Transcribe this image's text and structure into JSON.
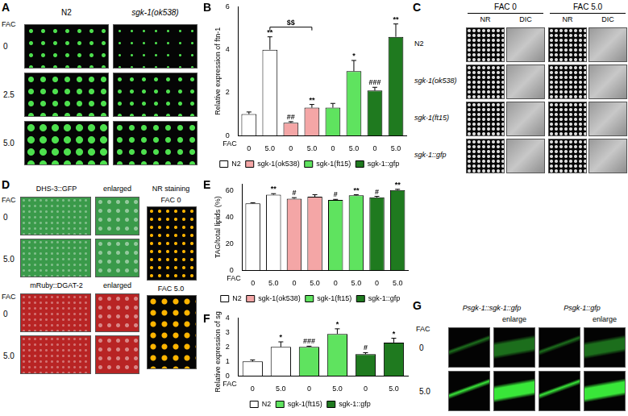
{
  "panels": {
    "A": {
      "label": "A",
      "columns": [
        "N2",
        "sgk-1(ok538)"
      ],
      "row_title": "FAC",
      "rows": [
        "0",
        "2.5",
        "5.0"
      ]
    },
    "C": {
      "label": "C",
      "groups": [
        "FAC 0",
        "FAC 5.0"
      ],
      "columns": [
        "NR",
        "DIC"
      ],
      "rows": [
        "N2",
        "sgk-1(ok538)",
        "sgk-1(ft15)",
        "sgk-1::gfp"
      ]
    },
    "D": {
      "label": "D",
      "row_title": "FAC",
      "blocks": [
        {
          "title": "DHS-3::GFP",
          "enlarged": "enlarged",
          "rows": [
            "0",
            "5.0"
          ],
          "color": "#3a9a4a"
        },
        {
          "title": "mRuby::DGAT-2",
          "enlarged": "enlarged",
          "rows": [
            "0",
            "5.0"
          ],
          "color": "#b82424"
        }
      ],
      "stain": {
        "title": "NR staining",
        "rows": [
          "FAC 0",
          "FAC 5.0"
        ]
      }
    },
    "G": {
      "label": "G",
      "row_title": "FAC",
      "rows": [
        "0",
        "5.0"
      ],
      "columns": [
        {
          "title": "Psgk-1::sgk-1::gfp",
          "enlarged": "enlarge"
        },
        {
          "title": "Psgk-1::gfp",
          "enlarged": "enlarge"
        }
      ]
    }
  },
  "chart_data": [
    {
      "panel_label": "B",
      "type": "bar",
      "y_label": "Relative expression of ftn-1",
      "x_label": "FAC",
      "categories": [
        "0",
        "5.0",
        "0",
        "5.0",
        "0",
        "5.0",
        "0",
        "5.0"
      ],
      "ylim": [
        0,
        6
      ],
      "yticks": [
        0,
        2,
        4,
        6
      ],
      "grid": false,
      "legend": "bottom",
      "series": [
        {
          "name": "N2",
          "color": "#ffffff",
          "values": [
            1.0,
            4.0,
            null,
            null,
            null,
            null,
            null,
            null
          ],
          "errors": [
            0.1,
            0.6,
            null,
            null,
            null,
            null,
            null,
            null
          ],
          "significance": [
            null,
            "**",
            null,
            null,
            null,
            null,
            null,
            null
          ]
        },
        {
          "name": "sgk-1(ok538)",
          "color": "#f4a6a6",
          "values": [
            null,
            null,
            0.6,
            1.3,
            null,
            null,
            null,
            null
          ],
          "errors": [
            null,
            null,
            0.05,
            0.15,
            null,
            null,
            null,
            null
          ],
          "significance": [
            null,
            null,
            "##",
            "**",
            null,
            null,
            null,
            null
          ]
        },
        {
          "name": "sgk-1(ft15)",
          "color": "#5fe35f",
          "values": [
            null,
            null,
            null,
            null,
            1.3,
            3.0,
            null,
            null
          ],
          "errors": [
            null,
            null,
            null,
            null,
            0.2,
            0.5,
            null,
            null
          ],
          "significance": [
            null,
            null,
            null,
            null,
            null,
            "*",
            null,
            null
          ]
        },
        {
          "name": "sgk-1::gfp",
          "color": "#1f7a1f",
          "values": [
            null,
            null,
            null,
            null,
            null,
            null,
            2.1,
            4.6
          ],
          "errors": [
            null,
            null,
            null,
            null,
            null,
            null,
            0.15,
            0.6
          ],
          "significance": [
            null,
            null,
            null,
            null,
            null,
            null,
            "###",
            "**"
          ]
        }
      ],
      "brackets": [
        {
          "from": 1,
          "to": 3,
          "label": "$$"
        }
      ]
    },
    {
      "panel_label": "E",
      "type": "bar",
      "y_label": "TAG/total lipids (%)",
      "x_label": "FAC",
      "categories": [
        "0",
        "5.0",
        "0",
        "5.0",
        "0",
        "5.0",
        "0",
        "5.0"
      ],
      "ylim": [
        0,
        65
      ],
      "yticks": [
        0,
        20,
        40,
        60
      ],
      "grid": false,
      "legend": "bottom",
      "series": [
        {
          "name": "N2",
          "color": "#ffffff",
          "values": [
            50.5,
            57,
            null,
            null,
            null,
            null,
            null,
            null
          ],
          "errors": [
            0.5,
            0.8,
            null,
            null,
            null,
            null,
            null,
            null
          ],
          "significance": [
            null,
            "**",
            null,
            null,
            null,
            null,
            null,
            null
          ]
        },
        {
          "name": "sgk-1(ok538)",
          "color": "#f4a6a6",
          "values": [
            null,
            null,
            54,
            55.5,
            null,
            null,
            null,
            null
          ],
          "errors": [
            null,
            null,
            0.8,
            1.5,
            null,
            null,
            null,
            null
          ],
          "significance": [
            null,
            null,
            "#",
            null,
            null,
            null,
            null,
            null
          ]
        },
        {
          "name": "sgk-1(ft15)",
          "color": "#5fe35f",
          "values": [
            null,
            null,
            null,
            null,
            53,
            56.5,
            null,
            null
          ],
          "errors": [
            null,
            null,
            null,
            null,
            0.5,
            0.5,
            null,
            null
          ],
          "significance": [
            null,
            null,
            null,
            null,
            "#",
            "**",
            null,
            null
          ]
        },
        {
          "name": "sgk-1::gfp",
          "color": "#1f7a1f",
          "values": [
            null,
            null,
            null,
            null,
            null,
            null,
            55,
            60.5
          ],
          "errors": [
            null,
            null,
            null,
            null,
            null,
            null,
            0.8,
            0.6
          ],
          "significance": [
            null,
            null,
            null,
            null,
            null,
            null,
            "#",
            "**"
          ]
        }
      ]
    },
    {
      "panel_label": "F",
      "type": "bar",
      "y_label": "Relative expression of sgk-1",
      "x_label": "FAC",
      "categories": [
        "0",
        "5.0",
        "0",
        "5.0",
        "0",
        "5.0"
      ],
      "ylim": [
        0,
        4
      ],
      "yticks": [
        0,
        1,
        2,
        3,
        4
      ],
      "grid": false,
      "legend": "bottom",
      "series": [
        {
          "name": "N2",
          "color": "#ffffff",
          "values": [
            1.0,
            2.0,
            null,
            null,
            null,
            null
          ],
          "errors": [
            0.1,
            0.35,
            null,
            null,
            null,
            null
          ],
          "significance": [
            null,
            "*",
            null,
            null,
            null,
            null
          ]
        },
        {
          "name": "sgk-1(ft15)",
          "color": "#5fe35f",
          "values": [
            null,
            null,
            2.0,
            2.9,
            null,
            null
          ],
          "errors": [
            null,
            null,
            0.05,
            0.35,
            null,
            null
          ],
          "significance": [
            null,
            null,
            "###",
            "*",
            null,
            null
          ]
        },
        {
          "name": "sgk-1::gfp",
          "color": "#1f7a1f",
          "values": [
            null,
            null,
            null,
            null,
            1.5,
            2.3
          ],
          "errors": [
            null,
            null,
            null,
            null,
            0.1,
            0.3
          ],
          "significance": [
            null,
            null,
            null,
            null,
            "#",
            "*"
          ]
        }
      ]
    }
  ]
}
